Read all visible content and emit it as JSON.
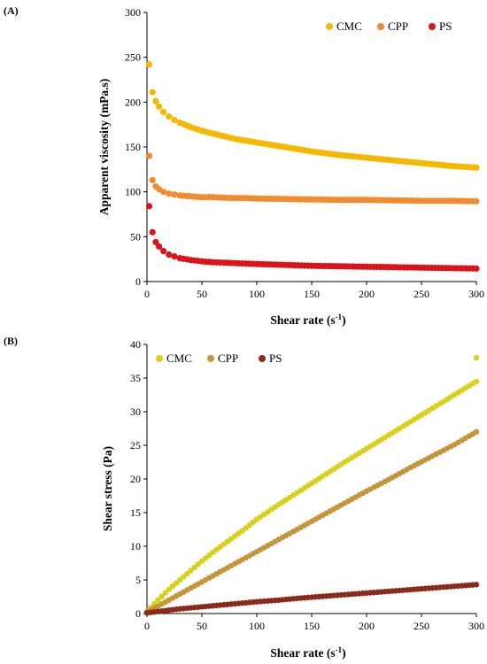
{
  "chart_data": [
    {
      "panel": "(A)",
      "type": "scatter",
      "xlabel": "Shear rate (s",
      "xlabel_sup": "-1",
      "xlabel_tail": ")",
      "ylabel": "Apparent viscosity (mPa.s)",
      "xlim": [
        0,
        300
      ],
      "ylim": [
        0,
        300
      ],
      "xticks": [
        0,
        50,
        100,
        150,
        200,
        250,
        300
      ],
      "yticks": [
        0,
        50,
        100,
        150,
        200,
        250,
        300
      ],
      "legend_position": "top-right",
      "series": [
        {
          "name": "CMC",
          "color": "#f5b800",
          "points": [
            [
              2,
              242
            ],
            [
              5,
              211
            ],
            [
              8,
              201
            ],
            [
              11,
              195
            ],
            [
              15,
              189
            ],
            [
              20,
              184
            ],
            [
              25,
              180
            ],
            [
              30,
              177
            ],
            [
              40,
              172
            ],
            [
              50,
              168
            ],
            [
              60,
              165
            ],
            [
              70,
              162
            ],
            [
              80,
              159
            ],
            [
              90,
              157
            ],
            [
              100,
              155
            ],
            [
              125,
              150
            ],
            [
              150,
              145
            ],
            [
              175,
              141
            ],
            [
              200,
              138
            ],
            [
              225,
              135
            ],
            [
              250,
              132
            ],
            [
              275,
              129
            ],
            [
              300,
              127
            ]
          ]
        },
        {
          "name": "CPP",
          "color": "#f28a2e",
          "points": [
            [
              2,
              140
            ],
            [
              5,
              113
            ],
            [
              8,
              106
            ],
            [
              11,
              103
            ],
            [
              15,
              100
            ],
            [
              20,
              98
            ],
            [
              25,
              97
            ],
            [
              30,
              96
            ],
            [
              40,
              95
            ],
            [
              50,
              94
            ],
            [
              60,
              94
            ],
            [
              70,
              93.5
            ],
            [
              80,
              93
            ],
            [
              90,
              93
            ],
            [
              100,
              92.5
            ],
            [
              125,
              92
            ],
            [
              150,
              91.5
            ],
            [
              175,
              91
            ],
            [
              200,
              91
            ],
            [
              225,
              90.5
            ],
            [
              250,
              90
            ],
            [
              275,
              90
            ],
            [
              300,
              89.5
            ]
          ]
        },
        {
          "name": "PS",
          "color": "#d9141b",
          "points": [
            [
              2,
              84
            ],
            [
              5,
              55
            ],
            [
              8,
              44
            ],
            [
              11,
              39
            ],
            [
              15,
              34
            ],
            [
              20,
              30
            ],
            [
              25,
              28
            ],
            [
              30,
              26
            ],
            [
              40,
              24
            ],
            [
              50,
              22.5
            ],
            [
              60,
              21.5
            ],
            [
              70,
              21
            ],
            [
              80,
              20.5
            ],
            [
              90,
              20
            ],
            [
              100,
              19.5
            ],
            [
              125,
              18.5
            ],
            [
              150,
              17.5
            ],
            [
              175,
              17
            ],
            [
              200,
              16.5
            ],
            [
              225,
              16
            ],
            [
              250,
              15.5
            ],
            [
              275,
              15
            ],
            [
              300,
              14.5
            ]
          ]
        }
      ]
    },
    {
      "panel": "(B)",
      "type": "scatter",
      "xlabel": "Shear rate (s",
      "xlabel_sup": "-1",
      "xlabel_tail": ")",
      "ylabel": "Shear stress (Pa)",
      "xlim": [
        0,
        300
      ],
      "ylim": [
        0,
        40
      ],
      "xticks": [
        0,
        50,
        100,
        150,
        200,
        250,
        300
      ],
      "yticks": [
        0,
        5,
        10,
        15,
        20,
        25,
        30,
        35,
        40
      ],
      "legend_position": "top-left",
      "series": [
        {
          "name": "CMC",
          "color": "#d8d01a",
          "points": [
            [
              0,
              0.3
            ],
            [
              10,
              2
            ],
            [
              20,
              3.6
            ],
            [
              30,
              5
            ],
            [
              40,
              6.4
            ],
            [
              50,
              7.8
            ],
            [
              60,
              9.1
            ],
            [
              70,
              10.3
            ],
            [
              80,
              11.5
            ],
            [
              90,
              12.7
            ],
            [
              100,
              14
            ],
            [
              120,
              16.2
            ],
            [
              140,
              18.3
            ],
            [
              160,
              20.4
            ],
            [
              180,
              22.5
            ],
            [
              200,
              24.5
            ],
            [
              220,
              26.5
            ],
            [
              240,
              28.5
            ],
            [
              260,
              30.5
            ],
            [
              280,
              32.5
            ],
            [
              300,
              34.5
            ],
            [
              300,
              38
            ]
          ]
        },
        {
          "name": "CPP",
          "color": "#c4953a",
          "points": [
            [
              0,
              0.2
            ],
            [
              10,
              1.1
            ],
            [
              20,
              2
            ],
            [
              30,
              2.9
            ],
            [
              40,
              3.8
            ],
            [
              50,
              4.7
            ],
            [
              60,
              5.6
            ],
            [
              70,
              6.5
            ],
            [
              80,
              7.4
            ],
            [
              90,
              8.3
            ],
            [
              100,
              9.2
            ],
            [
              120,
              11
            ],
            [
              140,
              12.8
            ],
            [
              160,
              14.6
            ],
            [
              180,
              16.4
            ],
            [
              200,
              18.2
            ],
            [
              220,
              19.9
            ],
            [
              240,
              21.7
            ],
            [
              260,
              23.4
            ],
            [
              280,
              25.1
            ],
            [
              300,
              27
            ]
          ]
        },
        {
          "name": "PS",
          "color": "#8b2a1a",
          "points": [
            [
              0,
              0.1
            ],
            [
              10,
              0.3
            ],
            [
              20,
              0.5
            ],
            [
              30,
              0.7
            ],
            [
              40,
              0.85
            ],
            [
              50,
              1
            ],
            [
              60,
              1.15
            ],
            [
              70,
              1.3
            ],
            [
              80,
              1.45
            ],
            [
              90,
              1.6
            ],
            [
              100,
              1.75
            ],
            [
              120,
              2.0
            ],
            [
              140,
              2.3
            ],
            [
              160,
              2.55
            ],
            [
              180,
              2.8
            ],
            [
              200,
              3.05
            ],
            [
              220,
              3.3
            ],
            [
              240,
              3.55
            ],
            [
              260,
              3.8
            ],
            [
              280,
              4.05
            ],
            [
              300,
              4.3
            ]
          ]
        }
      ]
    }
  ]
}
